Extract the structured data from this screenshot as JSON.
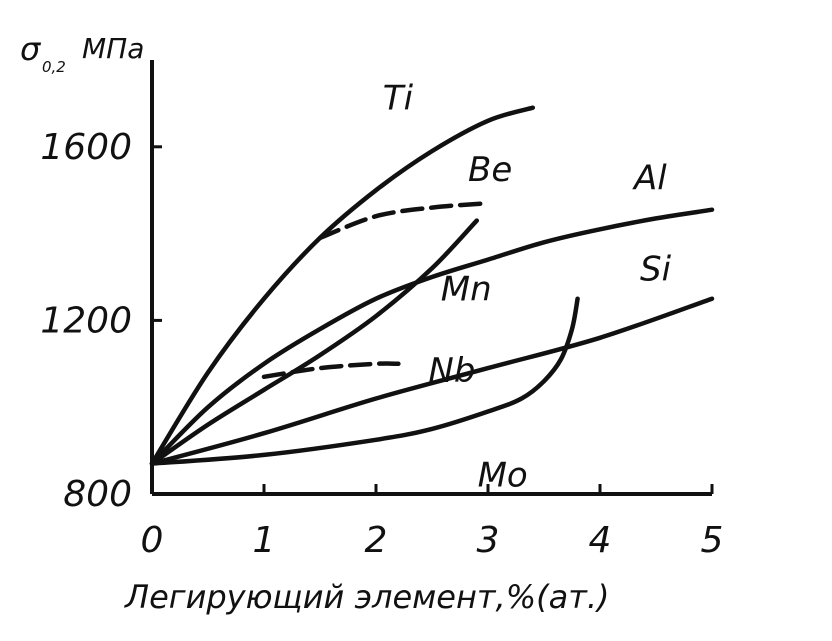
{
  "chart_data": {
    "type": "line",
    "ylabel": {
      "symbol": "σ",
      "subscript": "0,2",
      "unit": "МПа"
    },
    "xlabel": "Легирующий элемент,%(ат.)",
    "xlim": [
      0,
      5
    ],
    "ylim": [
      800,
      1800
    ],
    "x_ticks": [
      0,
      1,
      2,
      3,
      4,
      5
    ],
    "x_tick_labels": [
      "0",
      "1",
      "2",
      "3",
      "4",
      "5"
    ],
    "y_ticks": [
      800,
      1200,
      1600
    ],
    "y_tick_labels": [
      "800",
      "1200",
      "1600"
    ],
    "grid": false,
    "series": [
      {
        "name": "Ti",
        "style": "solid",
        "x": [
          0,
          0.5,
          1.0,
          1.5,
          2.0,
          2.5,
          3.0,
          3.4
        ],
        "y": [
          870,
          1080,
          1250,
          1390,
          1500,
          1590,
          1660,
          1690
        ]
      },
      {
        "name": "Be",
        "style": "dashed",
        "x": [
          1.5,
          2.0,
          2.5,
          3.0
        ],
        "y": [
          1390,
          1440,
          1460,
          1470
        ]
      },
      {
        "name": "Al",
        "style": "solid",
        "x": [
          0,
          0.5,
          1.0,
          1.5,
          2.0,
          2.5,
          3.0,
          3.5,
          4.0,
          4.5,
          5.0
        ],
        "y": [
          870,
          1000,
          1100,
          1180,
          1250,
          1300,
          1340,
          1380,
          1410,
          1435,
          1455
        ]
      },
      {
        "name": "Mn",
        "style": "solid",
        "x": [
          0,
          0.5,
          1.0,
          1.5,
          2.0,
          2.5,
          2.9
        ],
        "y": [
          870,
          960,
          1040,
          1120,
          1210,
          1320,
          1430
        ]
      },
      {
        "name": "Nb",
        "style": "dashed",
        "x": [
          1.0,
          1.5,
          2.0,
          2.2
        ],
        "y": [
          1070,
          1090,
          1100,
          1100
        ]
      },
      {
        "name": "Si",
        "style": "solid",
        "x": [
          0,
          1.0,
          2.0,
          3.0,
          4.0,
          5.0
        ],
        "y": [
          870,
          940,
          1020,
          1090,
          1160,
          1250
        ]
      },
      {
        "name": "Mo",
        "style": "solid",
        "x": [
          0,
          1.0,
          2.0,
          2.5,
          3.0,
          3.3,
          3.5,
          3.65,
          3.75,
          3.8
        ],
        "y": [
          870,
          890,
          925,
          950,
          990,
          1020,
          1060,
          1110,
          1180,
          1250
        ]
      }
    ],
    "colors": {
      "line": "#111111",
      "background": "#ffffff"
    }
  }
}
